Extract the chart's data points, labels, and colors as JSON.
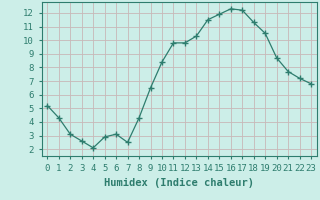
{
  "x": [
    0,
    1,
    2,
    3,
    4,
    5,
    6,
    7,
    8,
    9,
    10,
    11,
    12,
    13,
    14,
    15,
    16,
    17,
    18,
    19,
    20,
    21,
    22,
    23
  ],
  "y": [
    5.2,
    4.3,
    3.1,
    2.6,
    2.1,
    2.9,
    3.1,
    2.5,
    4.3,
    6.5,
    8.4,
    9.8,
    9.8,
    10.3,
    11.5,
    11.9,
    12.3,
    12.2,
    11.3,
    10.5,
    8.7,
    7.7,
    7.2,
    6.8
  ],
  "line_color": "#2e7d6e",
  "marker": "+",
  "marker_size": 4,
  "bg_color": "#cceee8",
  "grid_color": "#c8b8b8",
  "xlabel": "Humidex (Indice chaleur)",
  "xlabel_fontsize": 7.5,
  "tick_fontsize": 6.5,
  "xlim": [
    -0.5,
    23.5
  ],
  "ylim": [
    1.5,
    12.8
  ],
  "yticks": [
    2,
    3,
    4,
    5,
    6,
    7,
    8,
    9,
    10,
    11,
    12
  ],
  "xticks": [
    0,
    1,
    2,
    3,
    4,
    5,
    6,
    7,
    8,
    9,
    10,
    11,
    12,
    13,
    14,
    15,
    16,
    17,
    18,
    19,
    20,
    21,
    22,
    23
  ]
}
